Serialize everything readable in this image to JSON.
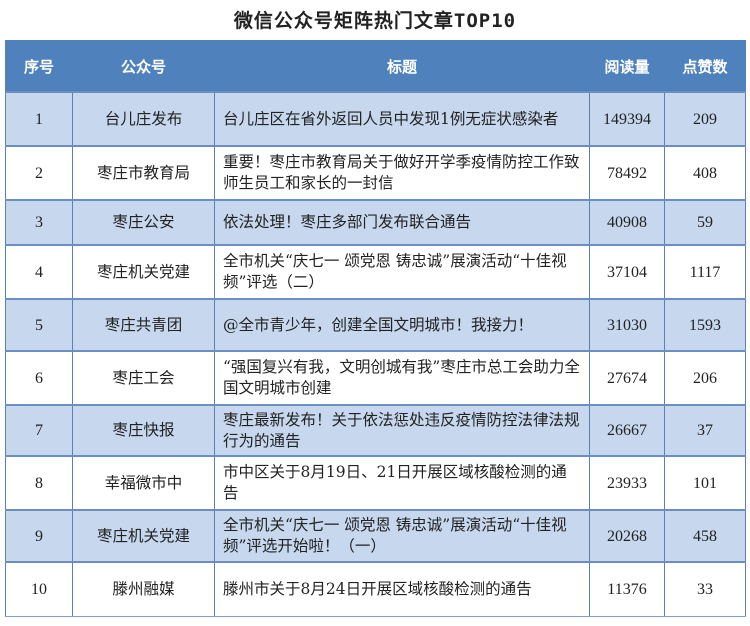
{
  "title": "微信公众号矩阵热门文章TOP10",
  "colors": {
    "header_bg": "#4f81bd",
    "odd_row_bg": "#c6d7ee",
    "even_row_bg": "#ffffff"
  },
  "headers": [
    "序号",
    "公众号",
    "标题",
    "阅读量",
    "点赞数"
  ],
  "rows": [
    {
      "rank": "1",
      "account": "台儿庄发布",
      "headline": "台儿庄区在省外返回人员中发现1例无症状感染者",
      "reads": "149394",
      "likes": "209"
    },
    {
      "rank": "2",
      "account": "枣庄市教育局",
      "headline": "重要！枣庄市教育局关于做好开学季疫情防控工作致师生员工和家长的一封信",
      "reads": "78492",
      "likes": "408"
    },
    {
      "rank": "3",
      "account": "枣庄公安",
      "headline": "依法处理！枣庄多部门发布联合通告",
      "reads": "40908",
      "likes": "59"
    },
    {
      "rank": "4",
      "account": "枣庄机关党建",
      "headline": "全市机关“庆七一 颂党恩 铸忠诚”展演活动“十佳视频”评选（二）",
      "reads": "37104",
      "likes": "1117"
    },
    {
      "rank": "5",
      "account": "枣庄共青团",
      "headline": "@全市青少年，创建全国文明城市！我接力！",
      "reads": "31030",
      "likes": "1593"
    },
    {
      "rank": "6",
      "account": "枣庄工会",
      "headline": "“强国复兴有我，文明创城有我”枣庄市总工会助力全国文明城市创建",
      "reads": "27674",
      "likes": "206"
    },
    {
      "rank": "7",
      "account": "枣庄快报",
      "headline": "枣庄最新发布！关于依法惩处违反疫情防控法律法规行为的通告",
      "reads": "26667",
      "likes": "37"
    },
    {
      "rank": "8",
      "account": "幸福微市中",
      "headline": "市中区关于8月19日、21日开展区域核酸检测的通告",
      "reads": "23933",
      "likes": "101"
    },
    {
      "rank": "9",
      "account": "枣庄机关党建",
      "headline": "全市机关“庆七一 颂党恩 铸忠诚”展演活动“十佳视频”评选开始啦！（一）",
      "reads": "20268",
      "likes": "458"
    },
    {
      "rank": "10",
      "account": "滕州融媒",
      "headline": "滕州市关于8月24日开展区域核酸检测的通告",
      "reads": "11376",
      "likes": "33"
    }
  ]
}
